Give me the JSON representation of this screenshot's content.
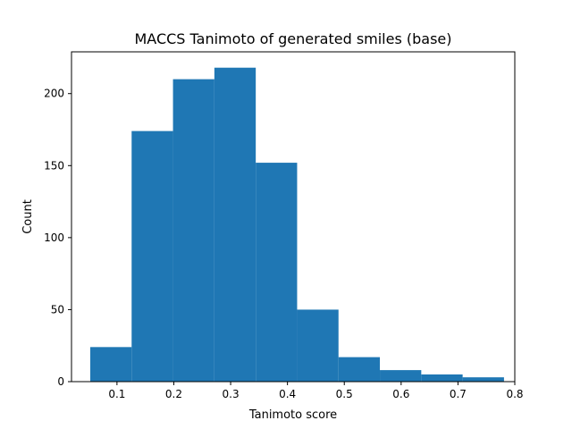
{
  "chart_data": {
    "type": "bar",
    "title": "MACCS Tanimoto of generated smiles (base)",
    "xlabel": "Tanimoto score",
    "ylabel": "Count",
    "xlim": [
      0.02,
      0.8
    ],
    "ylim": [
      0,
      229
    ],
    "xticks": [
      0.1,
      0.2,
      0.3,
      0.4,
      0.5,
      0.6,
      0.7,
      0.8
    ],
    "xtick_labels": [
      "0.1",
      "0.2",
      "0.3",
      "0.4",
      "0.5",
      "0.6",
      "0.7",
      "0.8"
    ],
    "yticks": [
      0,
      50,
      100,
      150,
      200
    ],
    "ytick_labels": [
      "0",
      "50",
      "100",
      "150",
      "200"
    ],
    "bin_edges": [
      0.053,
      0.1258,
      0.1986,
      0.2714,
      0.3442,
      0.417,
      0.4898,
      0.5626,
      0.6354,
      0.7082,
      0.781
    ],
    "values": [
      24,
      174,
      210,
      218,
      152,
      50,
      17,
      8,
      5,
      3
    ],
    "bar_color": "#1f77b4",
    "grid": false,
    "legend": false
  }
}
